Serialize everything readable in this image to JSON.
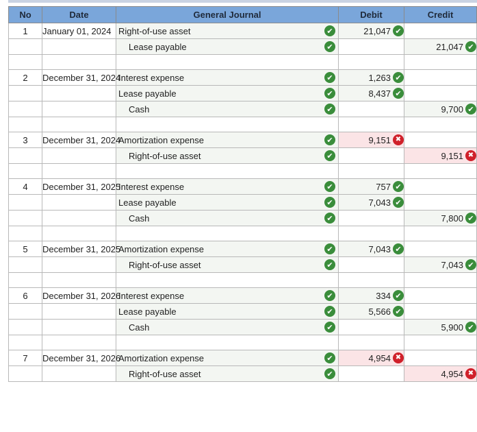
{
  "headers": {
    "no": "No",
    "date": "Date",
    "journal": "General Journal",
    "debit": "Debit",
    "credit": "Credit"
  },
  "rows": [
    {
      "no": "1",
      "date": "January 01, 2024",
      "account": "Right-of-use asset",
      "indent": false,
      "debit": "21,047",
      "debit_status": "correct",
      "credit": "",
      "credit_status": ""
    },
    {
      "no": "",
      "date": "",
      "account": "Lease payable",
      "indent": true,
      "debit": "",
      "debit_status": "",
      "credit": "21,047",
      "credit_status": "correct"
    },
    {
      "spacer": true
    },
    {
      "no": "2",
      "date": "December 31, 2024",
      "account": "Interest expense",
      "indent": false,
      "debit": "1,263",
      "debit_status": "correct",
      "credit": "",
      "credit_status": ""
    },
    {
      "no": "",
      "date": "",
      "account": "Lease payable",
      "indent": false,
      "debit": "8,437",
      "debit_status": "correct",
      "credit": "",
      "credit_status": ""
    },
    {
      "no": "",
      "date": "",
      "account": "Cash",
      "indent": true,
      "debit": "",
      "debit_status": "",
      "credit": "9,700",
      "credit_status": "correct"
    },
    {
      "spacer": true
    },
    {
      "no": "3",
      "date": "December 31, 2024",
      "account": "Amortization expense",
      "indent": false,
      "debit": "9,151",
      "debit_status": "incorrect",
      "credit": "",
      "credit_status": ""
    },
    {
      "no": "",
      "date": "",
      "account": "Right-of-use asset",
      "indent": true,
      "debit": "",
      "debit_status": "",
      "credit": "9,151",
      "credit_status": "incorrect"
    },
    {
      "spacer": true
    },
    {
      "no": "4",
      "date": "December 31, 2025",
      "account": "Interest expense",
      "indent": false,
      "debit": "757",
      "debit_status": "correct",
      "credit": "",
      "credit_status": ""
    },
    {
      "no": "",
      "date": "",
      "account": "Lease payable",
      "indent": false,
      "debit": "7,043",
      "debit_status": "correct",
      "credit": "",
      "credit_status": ""
    },
    {
      "no": "",
      "date": "",
      "account": "Cash",
      "indent": true,
      "debit": "",
      "debit_status": "",
      "credit": "7,800",
      "credit_status": "correct"
    },
    {
      "spacer": true
    },
    {
      "no": "5",
      "date": "December 31, 2025",
      "account": "Amortization expense",
      "indent": false,
      "debit": "7,043",
      "debit_status": "correct",
      "credit": "",
      "credit_status": ""
    },
    {
      "no": "",
      "date": "",
      "account": "Right-of-use asset",
      "indent": true,
      "debit": "",
      "debit_status": "",
      "credit": "7,043",
      "credit_status": "correct"
    },
    {
      "spacer": true
    },
    {
      "no": "6",
      "date": "December 31, 2026",
      "account": "Interest expense",
      "indent": false,
      "debit": "334",
      "debit_status": "correct",
      "credit": "",
      "credit_status": ""
    },
    {
      "no": "",
      "date": "",
      "account": "Lease payable",
      "indent": false,
      "debit": "5,566",
      "debit_status": "correct",
      "credit": "",
      "credit_status": ""
    },
    {
      "no": "",
      "date": "",
      "account": "Cash",
      "indent": true,
      "debit": "",
      "debit_status": "",
      "credit": "5,900",
      "credit_status": "correct"
    },
    {
      "spacer": true
    },
    {
      "no": "7",
      "date": "December 31, 2026",
      "account": "Amortization expense",
      "indent": false,
      "debit": "4,954",
      "debit_status": "incorrect",
      "credit": "",
      "credit_status": ""
    },
    {
      "no": "",
      "date": "",
      "account": "Right-of-use asset",
      "indent": true,
      "debit": "",
      "debit_status": "",
      "credit": "4,954",
      "credit_status": "incorrect"
    }
  ],
  "icons": {
    "correct": "check-circle-icon",
    "incorrect": "x-circle-icon"
  },
  "colors": {
    "header": "#7aa6da",
    "correct": "#3a8d3b",
    "incorrect": "#d0202a",
    "incorrect_cell": "#fbe4e6"
  }
}
